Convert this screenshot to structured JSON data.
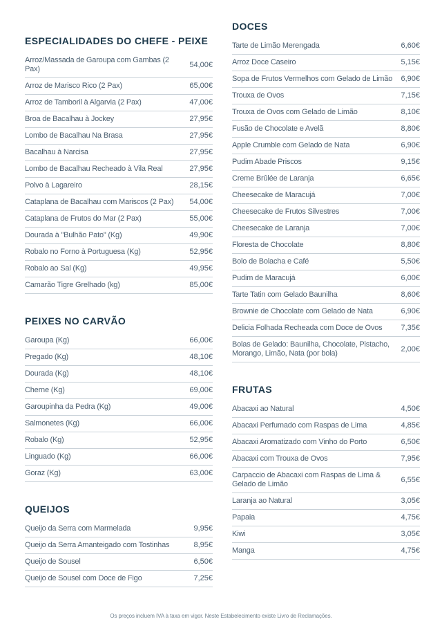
{
  "colors": {
    "background": "#ffffff",
    "section_title_text": "#1e3a4c",
    "item_text": "#4d6172",
    "divider": "#c8d1d8",
    "footer_text": "#70828f"
  },
  "footer": {
    "note": "Os preços incluem IVA à taxa em vigor. Neste Estabelecimento existe Livro de Reclamações."
  },
  "columns": [
    {
      "side": "left",
      "sections": [
        {
          "title": "ESPECIALIDADES DO CHEFE - PEIXE",
          "items": [
            {
              "name": "Arroz/Massada de Garoupa com Gambas (2 Pax)",
              "price": "54,00€"
            },
            {
              "name": "Arroz de Marisco Rico (2 Pax)",
              "price": "65,00€"
            },
            {
              "name": "Arroz de Tamboril à Algarvia (2 Pax)",
              "price": "47,00€"
            },
            {
              "name": "Broa de Bacalhau à Jockey",
              "price": "27,95€"
            },
            {
              "name": "Lombo de Bacalhau Na Brasa",
              "price": "27,95€"
            },
            {
              "name": "Bacalhau à Narcisa",
              "price": "27,95€"
            },
            {
              "name": "Lombo de Bacalhau Recheado à Vila Real",
              "price": "27,95€"
            },
            {
              "name": "Polvo à Lagareiro",
              "price": "28,15€"
            },
            {
              "name": "Cataplana de Bacalhau com Mariscos (2 Pax)",
              "price": "54,00€"
            },
            {
              "name": "Cataplana de Frutos do Mar (2 Pax)",
              "price": "55,00€"
            },
            {
              "name": "Dourada à \"Bulhão Pato\" (Kg)",
              "price": "49,90€"
            },
            {
              "name": "Robalo no Forno à Portuguesa (Kg)",
              "price": "52,95€"
            },
            {
              "name": "Robalo ao Sal (Kg)",
              "price": "49,95€"
            },
            {
              "name": "Camarão Tigre Grelhado (kg)",
              "price": "85,00€"
            }
          ]
        },
        {
          "title": "PEIXES NO CARVÃO",
          "items": [
            {
              "name": "Garoupa (Kg)",
              "price": "66,00€"
            },
            {
              "name": "Pregado (Kg)",
              "price": "48,10€"
            },
            {
              "name": "Dourada (Kg)",
              "price": "48,10€"
            },
            {
              "name": "Cherne (Kg)",
              "price": "69,00€"
            },
            {
              "name": "Garoupinha da Pedra (Kg)",
              "price": "49,00€"
            },
            {
              "name": "Salmonetes (Kg)",
              "price": "66,00€"
            },
            {
              "name": "Robalo (Kg)",
              "price": "52,95€"
            },
            {
              "name": "Linguado (Kg)",
              "price": "66,00€"
            },
            {
              "name": "Goraz (Kg)",
              "price": "63,00€"
            }
          ]
        },
        {
          "title": "QUEIJOS",
          "items": [
            {
              "name": "Queijo da Serra com Marmelada",
              "price": "9,95€"
            },
            {
              "name": "Queijo da Serra Amanteigado com Tostinhas",
              "price": "8,95€"
            },
            {
              "name": "Queijo de Sousel",
              "price": "6,50€"
            },
            {
              "name": "Queijo de Sousel com Doce de Figo",
              "price": "7,25€"
            }
          ]
        }
      ]
    },
    {
      "side": "right",
      "sections": [
        {
          "title": "DOCES",
          "items": [
            {
              "name": "Tarte de Limão Merengada",
              "price": "6,60€"
            },
            {
              "name": "Arroz Doce Caseiro",
              "price": "5,15€"
            },
            {
              "name": "Sopa de Frutos Vermelhos com Gelado de Limão",
              "price": "6,90€"
            },
            {
              "name": "Trouxa de Ovos",
              "price": "7,15€"
            },
            {
              "name": "Trouxa de Ovos com Gelado de Limão",
              "price": "8,10€"
            },
            {
              "name": "Fusão de Chocolate e Avelã",
              "price": "8,80€"
            },
            {
              "name": "Apple Crumble com Gelado de Nata",
              "price": "6,90€"
            },
            {
              "name": "Pudim Abade Priscos",
              "price": "9,15€"
            },
            {
              "name": "Creme Brûlée de Laranja",
              "price": "6,65€"
            },
            {
              "name": "Cheesecake de Maracujá",
              "price": "7,00€"
            },
            {
              "name": "Cheesecake de Frutos Silvestres",
              "price": "7,00€"
            },
            {
              "name": "Cheesecake de Laranja",
              "price": "7,00€"
            },
            {
              "name": "Floresta de Chocolate",
              "price": "8,80€"
            },
            {
              "name": "Bolo de Bolacha e Café",
              "price": "5,50€"
            },
            {
              "name": "Pudim de Maracujá",
              "price": "6,00€"
            },
            {
              "name": "Tarte Tatin com Gelado Baunilha",
              "price": "8,60€"
            },
            {
              "name": "Brownie de Chocolate com Gelado de Nata",
              "price": "6,90€"
            },
            {
              "name": "Delicia Folhada Recheada com Doce de Ovos",
              "price": "7,35€"
            },
            {
              "name": "Bolas de Gelado: Baunilha, Chocolate, Pistacho, Morango, Limão, Nata (por bola)",
              "price": "2,00€"
            }
          ]
        },
        {
          "title": "FRUTAS",
          "items": [
            {
              "name": "Abacaxi ao Natural",
              "price": "4,50€"
            },
            {
              "name": "Abacaxi Perfumado com Raspas de Lima",
              "price": "4,85€"
            },
            {
              "name": "Abacaxi Aromatizado com Vinho do Porto",
              "price": "6,50€"
            },
            {
              "name": "Abacaxi com Trouxa de Ovos",
              "price": "7,95€"
            },
            {
              "name": "Carpaccio de Abacaxi com Raspas de Lima & Gelado de Limão",
              "price": "6,55€"
            },
            {
              "name": "Laranja ao Natural",
              "price": "3,05€"
            },
            {
              "name": "Papaia",
              "price": "4,75€"
            },
            {
              "name": "Kiwi",
              "price": "3,05€"
            },
            {
              "name": "Manga",
              "price": "4,75€"
            }
          ]
        }
      ]
    }
  ]
}
